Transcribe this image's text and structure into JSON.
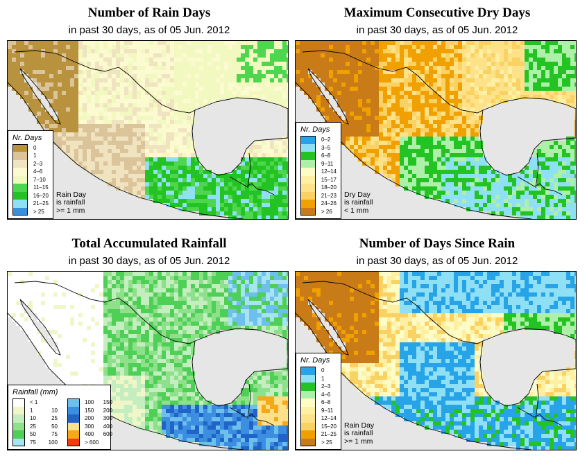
{
  "panels": [
    {
      "id": "rain_days",
      "title": "Number of Rain Days",
      "subtitle": "in past 30 days, as of  05 Jun. 2012",
      "legend_title": "Nr. Days",
      "legend": [
        {
          "label": "0",
          "color": "#b8923c"
        },
        {
          "label": "1",
          "color": "#dcc49a"
        },
        {
          "label": "2–3",
          "color": "#f0e4c0"
        },
        {
          "label": "4–6",
          "color": "#fbfad0"
        },
        {
          "label": "7–10",
          "color": "#f2f9c0"
        },
        {
          "label": "11–15",
          "color": "#4fd64f"
        },
        {
          "label": "16–20",
          "color": "#22c322"
        },
        {
          "label": "21–25",
          "color": "#8ee0f2"
        },
        {
          "label": "> 25",
          "color": "#3a8fdc"
        }
      ],
      "note": [
        "Rain Day",
        "is rainfall",
        ">= 1 mm"
      ]
    },
    {
      "id": "max_dry",
      "title": "Maximum Consecutive Dry Days",
      "subtitle": "in past 30 days, as of  05 Jun. 2012",
      "legend_title": "Nr. Days",
      "legend": [
        {
          "label": "0–2",
          "color": "#27a3e8"
        },
        {
          "label": "3–5",
          "color": "#8fe0f4"
        },
        {
          "label": "6–8",
          "color": "#22c322"
        },
        {
          "label": "9–11",
          "color": "#aef0aa"
        },
        {
          "label": "12–14",
          "color": "#fefcc6"
        },
        {
          "label": "15–17",
          "color": "#fdf0a2"
        },
        {
          "label": "18–20",
          "color": "#fde28a"
        },
        {
          "label": "21–23",
          "color": "#fad264"
        },
        {
          "label": "24–26",
          "color": "#f0a000"
        },
        {
          "label": "> 26",
          "color": "#c87b16"
        }
      ],
      "note": [
        "Dry Day",
        "is rainfall",
        "< 1 mm"
      ]
    },
    {
      "id": "total_rain",
      "title": "Total Accumulated Rainfall",
      "subtitle": "in past 30 days, as of  05 Jun. 2012",
      "legend_title": "Rainfall (mm)",
      "legend_cols": [
        [
          {
            "a": "< 1",
            "b": "",
            "color": "#ffffff"
          },
          {
            "a": "1",
            "b": "10",
            "color": "#f0f6c8"
          },
          {
            "a": "10",
            "b": "25",
            "color": "#c4eec0"
          },
          {
            "a": "25",
            "b": "50",
            "color": "#8ee08a"
          },
          {
            "a": "50",
            "b": "75",
            "color": "#4ecf55"
          },
          {
            "a": "75",
            "b": "100",
            "color": "#a6e4f2"
          }
        ],
        [
          {
            "a": "100",
            "b": "150",
            "color": "#6ec0ec"
          },
          {
            "a": "150",
            "b": "200",
            "color": "#3c8fe0"
          },
          {
            "a": "200",
            "b": "300",
            "color": "#2263c8"
          },
          {
            "a": "300",
            "b": "400",
            "color": "#fde08a"
          },
          {
            "a": "400",
            "b": "600",
            "color": "#f5a818"
          },
          {
            "a": "> 600",
            "b": "",
            "color": "#f03c10"
          }
        ]
      ]
    },
    {
      "id": "since_rain",
      "title": "Number of Days Since Rain",
      "subtitle": "in past 30 days, as of  05 Jun. 2012",
      "legend_title": "Nr. Days",
      "legend": [
        {
          "label": "0",
          "color": "#27a3e8"
        },
        {
          "label": "1",
          "color": "#8fe0f4"
        },
        {
          "label": "2–3",
          "color": "#22c322"
        },
        {
          "label": "4–6",
          "color": "#aef0aa"
        },
        {
          "label": "6–8",
          "color": "#fefcc6"
        },
        {
          "label": "9–11",
          "color": "#fdf0a2"
        },
        {
          "label": "12–14",
          "color": "#fde28a"
        },
        {
          "label": "15–20",
          "color": "#fad264"
        },
        {
          "label": "21–25",
          "color": "#f0a000"
        },
        {
          "label": "> 25",
          "color": "#c87b16"
        }
      ],
      "note": [
        "Rain Day",
        "is rainfall",
        ">= 1 mm"
      ]
    }
  ],
  "colors": {
    "ocean": "#e6e6e6",
    "border": "#000000"
  }
}
